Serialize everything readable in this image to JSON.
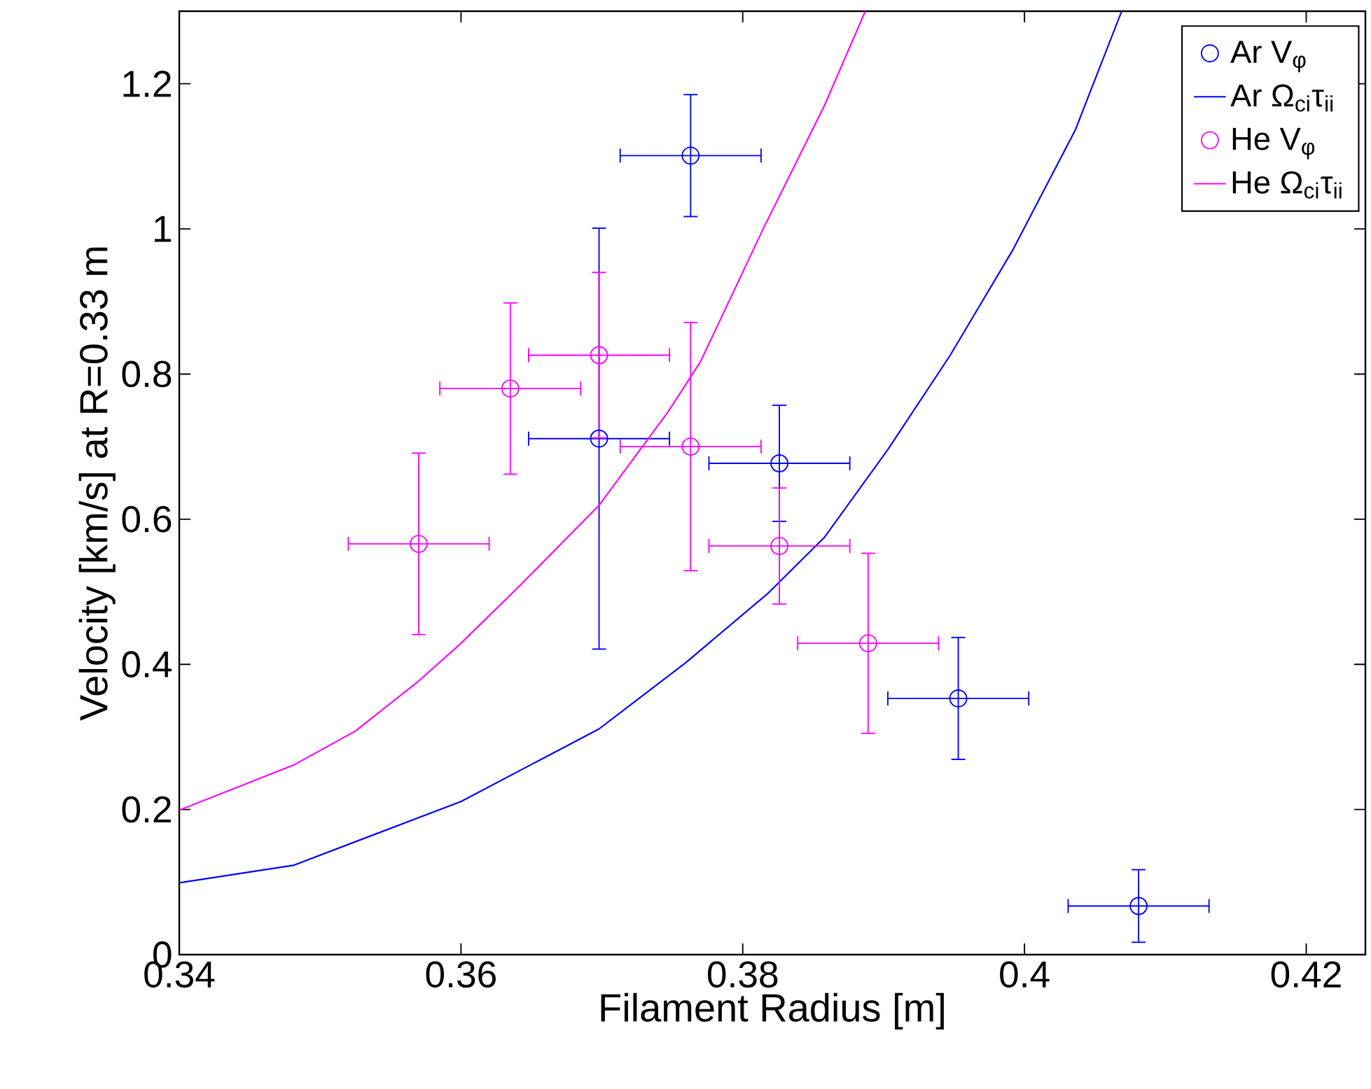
{
  "chart_data": {
    "type": "scatter",
    "xlabel": "Filament Radius [m]",
    "ylabel": "Velocity [km/s] at R=0.33 m",
    "xlim": [
      0.34,
      0.4242
    ],
    "ylim": [
      0,
      1.3
    ],
    "xticks": [
      0.34,
      0.36,
      0.38,
      0.4,
      0.42
    ],
    "yticks": [
      0,
      0.2,
      0.4,
      0.6,
      0.8,
      1,
      1.2
    ],
    "legend": "top right",
    "grid": false,
    "series": [
      {
        "name": "Ar V$_{φ}$",
        "marker": "circle",
        "color": "#0000ff",
        "x": [
          0.3763,
          0.3698,
          0.3826,
          0.3953,
          0.4081
        ],
        "values": [
          1.101,
          0.711,
          0.677,
          0.353,
          0.067
        ],
        "errors": [
          0.084,
          0.29,
          0.08,
          0.084,
          0.05
        ],
        "xerrors": [
          0.005,
          0.005,
          0.005,
          0.005,
          0.005
        ]
      },
      {
        "name": "Ar Ω$_{ci}$τ$_{ii}$",
        "type": "line",
        "marker": "none",
        "color": "#0000ff",
        "x": [
          0.34,
          0.3481,
          0.36,
          0.3698,
          0.376,
          0.3818,
          0.3858,
          0.3903,
          0.3947,
          0.3992,
          0.4036,
          0.4069
        ],
        "values": [
          0.099,
          0.123,
          0.211,
          0.311,
          0.403,
          0.498,
          0.575,
          0.696,
          0.825,
          0.972,
          1.136,
          1.3
        ]
      },
      {
        "name": "He V$_{φ}$",
        "marker": "circle",
        "color": "#ff00ff",
        "x": [
          0.357,
          0.3635,
          0.3698,
          0.3763,
          0.3826,
          0.3889
        ],
        "values": [
          0.566,
          0.78,
          0.826,
          0.7,
          0.563,
          0.429
        ],
        "errors": [
          0.125,
          0.118,
          0.114,
          0.171,
          0.08,
          0.124
        ],
        "xerrors": [
          0.005,
          0.005,
          0.005,
          0.005,
          0.005,
          0.005
        ]
      },
      {
        "name": "He Ω$_{ci}$τ$_{ii}$",
        "type": "line",
        "marker": "none",
        "color": "#ff00ff",
        "x": [
          0.34,
          0.3481,
          0.3525,
          0.357,
          0.36,
          0.3641,
          0.3698,
          0.3747,
          0.377,
          0.3814,
          0.3858,
          0.3887
        ],
        "values": [
          0.199,
          0.261,
          0.308,
          0.377,
          0.429,
          0.507,
          0.619,
          0.748,
          0.817,
          0.998,
          1.17,
          1.3
        ]
      }
    ]
  }
}
